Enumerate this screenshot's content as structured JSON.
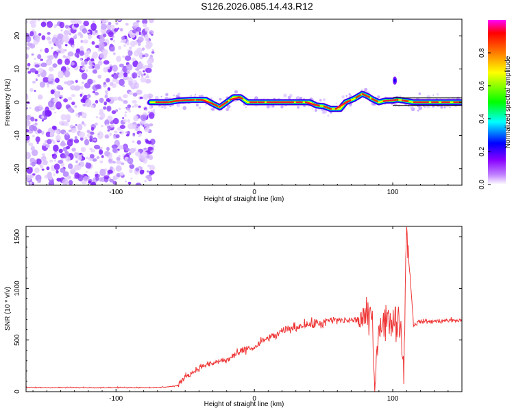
{
  "title": "S126.2026.085.14.43.R12",
  "chart_data": [
    {
      "type": "heatmap",
      "name": "spectrogram",
      "xlabel": "Height of straight line (km)",
      "ylabel": "Frequency (Hz)",
      "xlim": [
        -165,
        150
      ],
      "ylim": [
        -25,
        25
      ],
      "xticks": [
        -100,
        0,
        100
      ],
      "xtick_labels": [
        "-100",
        "0",
        "100"
      ],
      "yticks": [
        -20,
        -10,
        0,
        10,
        20
      ],
      "ytick_labels": [
        "-20",
        "-10",
        "0",
        "10",
        "20"
      ],
      "noise_region_x": [
        -165,
        -70
      ],
      "signal_start_x": -75,
      "trace_frequency_points": [
        [
          -75,
          0
        ],
        [
          -62,
          0
        ],
        [
          -55,
          0.5
        ],
        [
          -45,
          0.7
        ],
        [
          -35,
          0.7
        ],
        [
          -30,
          -0.5
        ],
        [
          -25,
          -1.5
        ],
        [
          -20,
          0
        ],
        [
          -15,
          1.5
        ],
        [
          -10,
          1.5
        ],
        [
          -5,
          0
        ],
        [
          0,
          0
        ],
        [
          10,
          0
        ],
        [
          25,
          0
        ],
        [
          40,
          0
        ],
        [
          45,
          -1
        ],
        [
          50,
          -1.2
        ],
        [
          55,
          -2
        ],
        [
          62,
          -2
        ],
        [
          66,
          0
        ],
        [
          72,
          1
        ],
        [
          78,
          2.5
        ],
        [
          82,
          1.8
        ],
        [
          85,
          1
        ],
        [
          90,
          0
        ],
        [
          95,
          0.5
        ],
        [
          100,
          0.5
        ],
        [
          103,
          0.8
        ],
        [
          108,
          0.5
        ],
        [
          115,
          0
        ],
        [
          130,
          0
        ],
        [
          150,
          0
        ]
      ],
      "colorbar": {
        "label": "Normalized spectral amplitude",
        "range": [
          0.0,
          1.0
        ],
        "ticks": [
          0.0,
          0.2,
          0.4,
          0.6,
          0.8
        ],
        "tick_labels": [
          "0.0",
          "0.2",
          "0.4",
          "0.6",
          "0.8"
        ],
        "colors": [
          "#ffffff",
          "#8800ff",
          "#0000ff",
          "#00ffff",
          "#00ff00",
          "#ffff00",
          "#ff0000",
          "#ff00ff"
        ]
      }
    },
    {
      "type": "line",
      "name": "snr",
      "xlabel": "Height of straight line (km)",
      "ylabel": "SNR (10 * v/v)",
      "xlim": [
        -165,
        150
      ],
      "ylim": [
        0,
        1600
      ],
      "xticks": [
        -100,
        0,
        100
      ],
      "xtick_labels": [
        "-100",
        "0",
        "100"
      ],
      "yticks": [
        0,
        500,
        1000,
        1500
      ],
      "ytick_labels": [
        "0",
        "500",
        "1000",
        "1500"
      ],
      "color": "#ee3333",
      "x": [
        -165,
        -150,
        -140,
        -130,
        -120,
        -110,
        -100,
        -90,
        -80,
        -70,
        -60,
        -55,
        -50,
        -45,
        -40,
        -35,
        -30,
        -25,
        -20,
        -15,
        -10,
        -5,
        0,
        5,
        10,
        15,
        20,
        25,
        30,
        35,
        40,
        45,
        50,
        55,
        60,
        65,
        70,
        75,
        80,
        85,
        87,
        90,
        95,
        100,
        105,
        108,
        110,
        115,
        120,
        130,
        140,
        150
      ],
      "y": [
        40,
        40,
        40,
        40,
        40,
        40,
        40,
        40,
        40,
        40,
        50,
        60,
        150,
        180,
        230,
        260,
        270,
        300,
        300,
        350,
        380,
        420,
        420,
        480,
        520,
        540,
        580,
        610,
        620,
        650,
        650,
        660,
        660,
        690,
        690,
        690,
        690,
        700,
        710,
        720,
        60,
        650,
        680,
        690,
        700,
        230,
        1600,
        650,
        680,
        680,
        690,
        690
      ]
    }
  ]
}
